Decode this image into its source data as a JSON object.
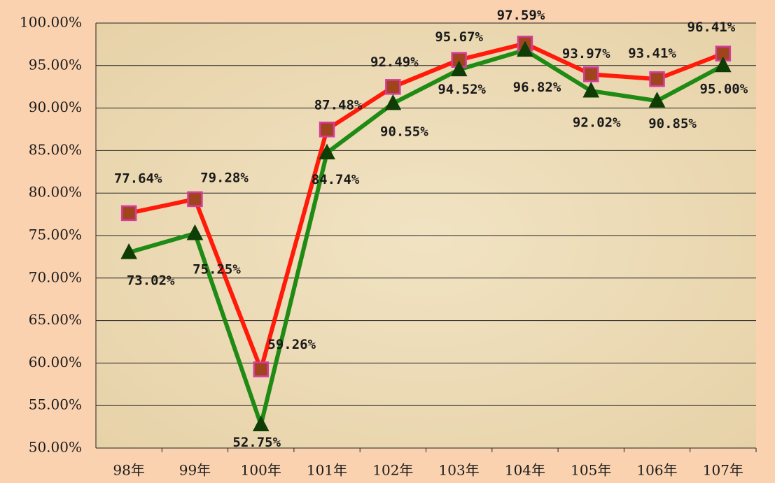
{
  "chart_data": {
    "type": "line",
    "categories": [
      "98年",
      "99年",
      "100年",
      "101年",
      "102年",
      "103年",
      "104年",
      "105年",
      "106年",
      "107年"
    ],
    "series": [
      {
        "color": "#ff1a0a",
        "marker": "square",
        "marker_color": "#a0441e",
        "marker_edge": "#d63ca0",
        "values": [
          77.64,
          79.28,
          59.26,
          87.48,
          92.49,
          95.67,
          97.59,
          93.97,
          93.41,
          96.41
        ],
        "value_labels": [
          "77.64%",
          "79.28%",
          "59.26%",
          "87.48%",
          "92.49%",
          "95.67%",
          "97.59%",
          "93.97%",
          "93.41%",
          "96.41%"
        ]
      },
      {
        "color": "#1f8a14",
        "marker": "triangle",
        "marker_color": "#0f3d05",
        "marker_edge": "#0f3d05",
        "values": [
          73.02,
          75.25,
          52.75,
          84.74,
          90.55,
          94.52,
          96.82,
          92.02,
          90.85,
          95.0
        ],
        "value_labels": [
          "73.02%",
          "75.25%",
          "52.75%",
          "84.74%",
          "90.55%",
          "94.52%",
          "96.82%",
          "92.02%",
          "90.85%",
          "95.00%"
        ]
      }
    ],
    "ylim": [
      50,
      100
    ],
    "yticks": [
      {
        "value": 50,
        "label": "50.00%"
      },
      {
        "value": 55,
        "label": "55.00%"
      },
      {
        "value": 60,
        "label": "60.00%"
      },
      {
        "value": 65,
        "label": "65.00%"
      },
      {
        "value": 70,
        "label": "70.00%"
      },
      {
        "value": 75,
        "label": "75.00%"
      },
      {
        "value": 80,
        "label": "80.00%"
      },
      {
        "value": 85,
        "label": "85.00%"
      },
      {
        "value": 90,
        "label": "90.00%"
      },
      {
        "value": 95,
        "label": "95.00%"
      },
      {
        "value": 100,
        "label": "100.00%"
      }
    ],
    "grid": true
  }
}
